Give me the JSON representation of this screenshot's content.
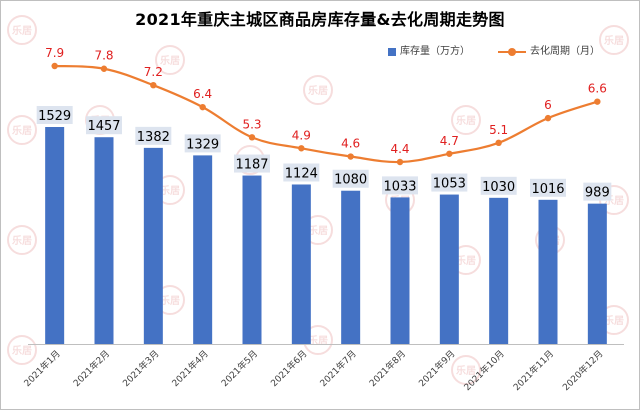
{
  "chart_data": {
    "type": "bar",
    "title": "2021年重庆主城区商品房库存量&去化周期走势图",
    "categories": [
      "2021年1月",
      "2021年2月",
      "2021年3月",
      "2021年4月",
      "2021年5月",
      "2021年6月",
      "2021年7月",
      "2021年8月",
      "2021年9月",
      "2021年10月",
      "2021年11月",
      "2020年12月"
    ],
    "series": [
      {
        "name": "库存量（万方）",
        "type": "bar",
        "axis": "left",
        "color": "#4472c4",
        "values": [
          1529,
          1457,
          1382,
          1329,
          1187,
          1124,
          1080,
          1033,
          1053,
          1030,
          1016,
          989
        ]
      },
      {
        "name": "去化周期（月）",
        "type": "line",
        "axis": "right",
        "color": "#ed7d31",
        "values": [
          7.9,
          7.8,
          7.2,
          6.4,
          5.3,
          4.9,
          4.6,
          4.4,
          4.7,
          5.1,
          6,
          6.6
        ]
      }
    ],
    "ylim_left": [
      0,
      1800
    ],
    "ylim_right": [
      0,
      10
    ],
    "grid": false,
    "legend_position": "top-right",
    "bar_label_background": "#dde4ef",
    "line_label_color": "#e02020",
    "watermark": "乐居"
  }
}
